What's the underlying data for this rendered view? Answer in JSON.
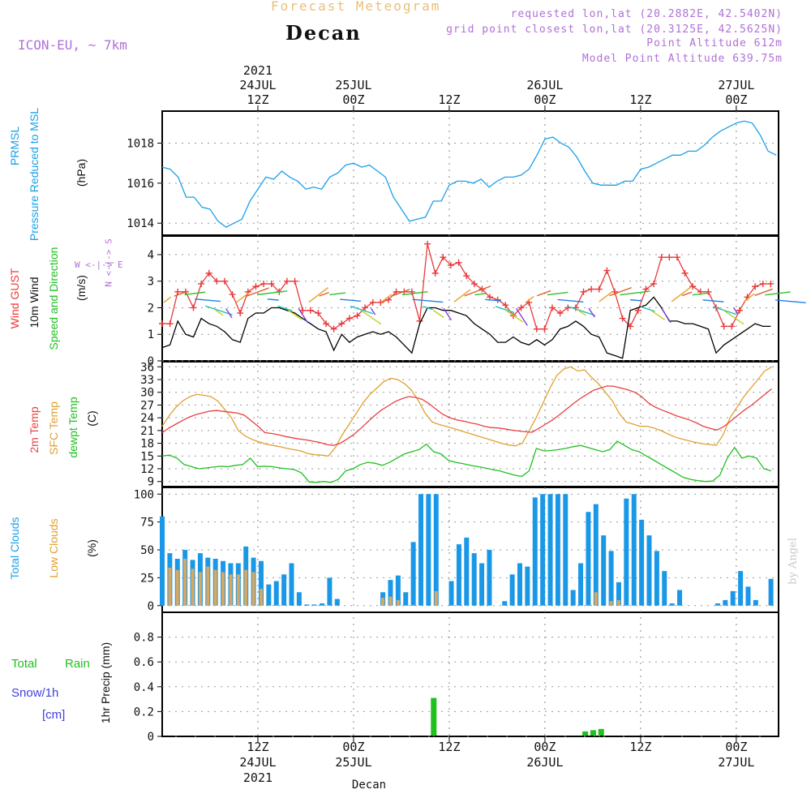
{
  "header": {
    "forecast_title": "Forecast Meteogram",
    "location": "Decan",
    "model": "ICON-EU, ~ 7km",
    "requested": "requested lon,lat (20.2882E, 42.5402N)",
    "gridpoint": "grid point closest lon,lat (20.3125E, 42.5625N)",
    "point_alt": "Point Altitude 612m",
    "model_alt": "Model Point Altitude 639.75m"
  },
  "time_axis": {
    "top_year": "2021",
    "bottom_label": "Decan",
    "ticks": [
      {
        "h": 12,
        "top": [
          "24JUL",
          "12Z"
        ],
        "bottom": [
          "12Z",
          "24JUL",
          "2021"
        ]
      },
      {
        "h": 24,
        "top": [
          "25JUL",
          "00Z"
        ],
        "bottom": [
          "00Z",
          "25JUL"
        ]
      },
      {
        "h": 36,
        "top": [
          "12Z"
        ],
        "bottom": [
          "12Z"
        ]
      },
      {
        "h": 48,
        "top": [
          "26JUL",
          "00Z"
        ],
        "bottom": [
          "00Z",
          "26JUL"
        ]
      },
      {
        "h": 60,
        "top": [
          "12Z"
        ],
        "bottom": [
          "12Z"
        ]
      },
      {
        "h": 72,
        "top": [
          "27JUL",
          "00Z"
        ],
        "bottom": [
          "00Z",
          "27JUL"
        ]
      }
    ]
  },
  "labels": {
    "prmsl": "PRMSL",
    "prmsl_long": "Pressure Reduced to MSL",
    "hpa": "(hPa)",
    "wind_gust": "Wind GUST",
    "wind_10m": "10m Wind",
    "wind_sd": "Speed and Direction",
    "ms": "(m/s)",
    "compass_ns": "N <-|-> S",
    "compass_we": "W <-|-> E",
    "temp_2m": "2m Temp",
    "temp_sfc": "SFC Temp",
    "temp_dew": "dewpt Temp",
    "deg_c": "(C)",
    "total_clouds": "Total Clouds",
    "low_clouds": "Low Clouds",
    "pct": "(%)",
    "precip_total": "Total",
    "precip_rain": "Rain",
    "precip_snow": "Snow/1h",
    "precip_cm": "[cm]",
    "precip_axis": "1hr Precip (mm)",
    "signature": "by Angel"
  },
  "colors": {
    "pressure": "#1aa0e8",
    "gust": "#e83a3a",
    "wind": "#000000",
    "temp2m": "#e84040",
    "sfc": "#e0a030",
    "dew": "#20c020",
    "total_clouds": "#1a98e8",
    "low_clouds": "#d8a860",
    "rain": "#20c020",
    "snow": "#4040e0",
    "purple": "#b070d8"
  },
  "chart_data": [
    {
      "type": "line",
      "name": "pressure",
      "title": "PRMSL Pressure Reduced to MSL",
      "ylabel": "(hPa)",
      "x_unit": "hours from 24JUL 02Z",
      "ylim": [
        1013.4,
        1019.6
      ],
      "yticks": [
        1014,
        1016,
        1018
      ],
      "series": [
        {
          "name": "PRMSL",
          "x": [
            0,
            1,
            2,
            3,
            4,
            5,
            6,
            7,
            8,
            9,
            10,
            11,
            12,
            13,
            14,
            15,
            16,
            17,
            18,
            19,
            20,
            21,
            22,
            23,
            24,
            25,
            26,
            27,
            28,
            29,
            30,
            31,
            32,
            33,
            34,
            35,
            36,
            37,
            38,
            39,
            40,
            41,
            42,
            43,
            44,
            45,
            46,
            47,
            48,
            49,
            50,
            51,
            52,
            53,
            54,
            55,
            56,
            57,
            58,
            59,
            60,
            61,
            62,
            63,
            64,
            65,
            66,
            67,
            68,
            69,
            70,
            71,
            72,
            73,
            74,
            75,
            76,
            77
          ],
          "values": [
            1016.8,
            1016.7,
            1016.3,
            1015.3,
            1015.3,
            1014.8,
            1014.7,
            1014.1,
            1013.8,
            1014.0,
            1014.2,
            1015.1,
            1015.7,
            1016.3,
            1016.2,
            1016.6,
            1016.3,
            1016.1,
            1015.7,
            1015.8,
            1015.7,
            1016.3,
            1016.5,
            1016.9,
            1017.0,
            1016.8,
            1016.9,
            1016.6,
            1016.3,
            1015.3,
            1014.7,
            1014.1,
            1014.2,
            1014.3,
            1015.1,
            1015.1,
            1015.9,
            1016.1,
            1016.1,
            1016.0,
            1016.2,
            1015.8,
            1016.1,
            1016.3,
            1016.3,
            1016.4,
            1016.7,
            1017.4,
            1018.2,
            1018.3,
            1018.0,
            1017.8,
            1017.3,
            1016.6,
            1016.0,
            1015.9,
            1015.9,
            1015.9,
            1016.1,
            1016.1,
            1016.7,
            1016.8,
            1017.0,
            1017.2,
            1017.4,
            1017.4,
            1017.6,
            1017.6,
            1017.9,
            1018.3,
            1018.6,
            1018.8,
            1019.0,
            1019.1,
            1019.0,
            1018.4,
            1017.6,
            1017.4
          ]
        }
      ]
    },
    {
      "type": "line",
      "name": "wind",
      "title": "Wind GUST / 10m Wind Speed and Direction",
      "ylabel": "(m/s)",
      "ylim": [
        0,
        4.7
      ],
      "yticks": [
        0,
        1,
        2,
        3,
        4
      ],
      "series": [
        {
          "name": "Wind GUST",
          "values": [
            1.4,
            1.4,
            2.6,
            2.6,
            2.0,
            2.9,
            3.3,
            3.0,
            3.0,
            2.5,
            1.8,
            2.6,
            2.8,
            2.9,
            2.9,
            2.6,
            3.0,
            3.0,
            1.9,
            1.9,
            1.8,
            1.4,
            1.2,
            1.4,
            1.6,
            1.7,
            2.0,
            2.2,
            2.2,
            2.3,
            2.6,
            2.6,
            2.6,
            1.5,
            4.4,
            3.3,
            3.9,
            3.6,
            3.7,
            3.2,
            2.9,
            2.7,
            2.4,
            2.3,
            2.1,
            1.7,
            2.0,
            2.2,
            1.2,
            1.2,
            2.0,
            1.8,
            2.0,
            2.0,
            2.6,
            2.7,
            2.7,
            3.4,
            2.6,
            1.6,
            1.3,
            1.9,
            2.7,
            2.9,
            3.9,
            3.9,
            3.9,
            3.3,
            2.8,
            2.6,
            2.6,
            2.0,
            1.3,
            1.3,
            1.9,
            2.4,
            2.8,
            2.9,
            2.9
          ]
        },
        {
          "name": "10m Wind",
          "values": [
            0.5,
            0.6,
            1.5,
            1.0,
            0.9,
            1.6,
            1.4,
            1.3,
            1.1,
            0.8,
            0.7,
            1.6,
            1.8,
            1.8,
            2.0,
            2.0,
            1.9,
            1.8,
            1.6,
            1.4,
            1.2,
            1.1,
            0.4,
            1.0,
            0.7,
            0.9,
            1.0,
            1.1,
            1.0,
            1.1,
            0.9,
            0.6,
            0.3,
            1.4,
            2.0,
            2.0,
            1.9,
            1.9,
            1.8,
            1.7,
            1.4,
            1.2,
            1.0,
            0.7,
            0.7,
            0.9,
            0.7,
            0.6,
            0.8,
            0.6,
            0.8,
            1.2,
            1.3,
            1.5,
            1.3,
            1.0,
            0.9,
            0.3,
            0.2,
            0.1,
            1.9,
            2.0,
            2.1,
            2.4,
            2.0,
            1.5,
            1.5,
            1.4,
            1.4,
            1.3,
            1.2,
            0.3,
            0.6,
            0.8,
            1.0,
            1.2,
            1.4,
            1.3,
            1.3
          ]
        }
      ]
    },
    {
      "type": "line",
      "name": "temperature",
      "title": "2m Temp / SFC Temp / dewpt Temp",
      "ylabel": "(C)",
      "ylim": [
        7.8,
        37.2
      ],
      "yticks": [
        9,
        12,
        15,
        18,
        21,
        24,
        27,
        30,
        33,
        36
      ],
      "series": [
        {
          "name": "2m Temp",
          "values": [
            20.5,
            21.6,
            22.5,
            23.4,
            24.2,
            24.8,
            25.2,
            25.6,
            25.7,
            25.5,
            25.3,
            25.1,
            24.6,
            23.3,
            22.0,
            20.5,
            20.3,
            20.0,
            19.6,
            19.3,
            19.0,
            18.8,
            18.5,
            18.2,
            17.7,
            17.5,
            18.0,
            19.0,
            20.1,
            21.5,
            23.0,
            24.5,
            25.8,
            26.8,
            27.8,
            28.5,
            29.0,
            28.8,
            28.3,
            27.3,
            26.0,
            24.8,
            24.0,
            23.5,
            23.2,
            22.8,
            22.5,
            22.0,
            21.7,
            21.6,
            21.4,
            21.1,
            20.9,
            20.7,
            20.6,
            21.5,
            22.5,
            23.5,
            24.7,
            26.0,
            27.3,
            28.5,
            29.5,
            30.5,
            31.0,
            31.5,
            31.4,
            31.0,
            30.6,
            30.0,
            29.0,
            27.5,
            26.5,
            25.8,
            25.2,
            24.5,
            24.0,
            23.5,
            22.8,
            22.0,
            21.5,
            21.1,
            21.9,
            23.2,
            24.5,
            25.8,
            26.9,
            28.2,
            29.5,
            30.8
          ]
        },
        {
          "name": "SFC Temp",
          "values": [
            22.0,
            24.5,
            26.5,
            28.0,
            29.0,
            29.5,
            29.3,
            29.0,
            28.0,
            26.0,
            24.0,
            21.0,
            19.7,
            18.9,
            18.3,
            17.8,
            17.5,
            17.2,
            16.8,
            16.5,
            16.2,
            15.6,
            15.3,
            15.2,
            15.0,
            17.0,
            20.0,
            22.5,
            25.0,
            27.5,
            29.5,
            31.0,
            32.5,
            33.3,
            33.0,
            32.0,
            30.5,
            28.0,
            25.0,
            23.0,
            22.4,
            22.0,
            21.5,
            21.0,
            20.5,
            20.0,
            19.5,
            19.0,
            18.5,
            18.0,
            17.6,
            17.4,
            18.0,
            21.0,
            24.0,
            27.5,
            31.0,
            34.0,
            35.5,
            36.0,
            35.0,
            35.3,
            33.5,
            32.0,
            30.0,
            28.0,
            25.0,
            23.0,
            22.5,
            22.0,
            22.0,
            21.6,
            21.0,
            20.2,
            19.5,
            19.0,
            18.6,
            18.2,
            17.9,
            17.7,
            17.5,
            20.0,
            24.0,
            26.5,
            29.0,
            31.0,
            33.0,
            35.0,
            36.0
          ]
        },
        {
          "name": "dewpt Temp",
          "values": [
            15.0,
            15.2,
            14.5,
            13.0,
            12.5,
            12.0,
            12.2,
            12.4,
            12.6,
            12.5,
            12.8,
            13.0,
            14.5,
            12.5,
            12.6,
            12.5,
            12.2,
            12.0,
            11.8,
            11.0,
            8.9,
            8.8,
            9.0,
            8.8,
            9.5,
            11.5,
            12.0,
            13.0,
            13.5,
            13.3,
            12.8,
            13.5,
            14.5,
            15.5,
            16.0,
            16.5,
            17.8,
            16.0,
            15.5,
            14.0,
            13.5,
            13.2,
            12.8,
            12.5,
            12.2,
            11.8,
            11.5,
            11.0,
            10.5,
            10.2,
            11.5,
            16.8,
            16.2,
            16.3,
            16.5,
            16.8,
            17.2,
            17.5,
            17.0,
            16.5,
            16.0,
            16.5,
            18.5,
            17.5,
            16.5,
            16.0,
            15.0,
            14.0,
            13.0,
            12.0,
            11.0,
            10.0,
            9.5,
            9.2,
            9.0,
            9.1,
            10.5,
            14.5,
            17.0,
            14.5,
            15.0,
            14.5,
            12.0,
            11.5
          ]
        }
      ]
    },
    {
      "type": "bar",
      "name": "clouds",
      "title": "Total Clouds / Low Clouds",
      "ylabel": "(%)",
      "ylim": [
        -6,
        106
      ],
      "yticks": [
        0,
        25,
        50,
        75,
        100
      ],
      "series": [
        {
          "name": "Total Clouds",
          "values": [
            80,
            47,
            42,
            50,
            41,
            47,
            43,
            42,
            40,
            38,
            38,
            53,
            43,
            40,
            19,
            22,
            28,
            38,
            12,
            1,
            1,
            2,
            25,
            6,
            0,
            0,
            0,
            0,
            0,
            12,
            23,
            27,
            12,
            57,
            100,
            100,
            100,
            0,
            22,
            55,
            61,
            47,
            38,
            50,
            0,
            4,
            28,
            38,
            35,
            97,
            100,
            100,
            100,
            100,
            14,
            38,
            84,
            91,
            63,
            49,
            21,
            96,
            100,
            77,
            63,
            49,
            31,
            2,
            14,
            0,
            0,
            0,
            0,
            2,
            5,
            13,
            31,
            17,
            5,
            0,
            24
          ]
        },
        {
          "name": "Low Clouds",
          "values": [
            0,
            34,
            32,
            42,
            33,
            30,
            35,
            32,
            30,
            28,
            28,
            32,
            30,
            15,
            0,
            0,
            0,
            0,
            0,
            0,
            0,
            0,
            0,
            0,
            0,
            0,
            0,
            0,
            0,
            7,
            8,
            5,
            0,
            0,
            0,
            0,
            13,
            0,
            0,
            0,
            0,
            0,
            0,
            0,
            0,
            0,
            0,
            0,
            0,
            0,
            0,
            0,
            0,
            0,
            0,
            0,
            0,
            12,
            0,
            4,
            5,
            0,
            0,
            0,
            0,
            0,
            0,
            0,
            0,
            0,
            0,
            0,
            0,
            0,
            0,
            0,
            0,
            0,
            0,
            0,
            0
          ]
        }
      ]
    },
    {
      "type": "bar",
      "name": "precip",
      "title": "1hr Precip (mm)",
      "ylabel": "1hr Precip (mm)",
      "ylim": [
        0,
        1.0
      ],
      "yticks": [
        0,
        0.2,
        0.4,
        0.6,
        0.8
      ],
      "series": [
        {
          "name": "Total Rain",
          "points": [
            {
              "x": 34,
              "value": 0.31
            },
            {
              "x": 53,
              "value": 0.04
            },
            {
              "x": 54,
              "value": 0.05
            },
            {
              "x": 55,
              "value": 0.06
            }
          ]
        }
      ]
    }
  ]
}
